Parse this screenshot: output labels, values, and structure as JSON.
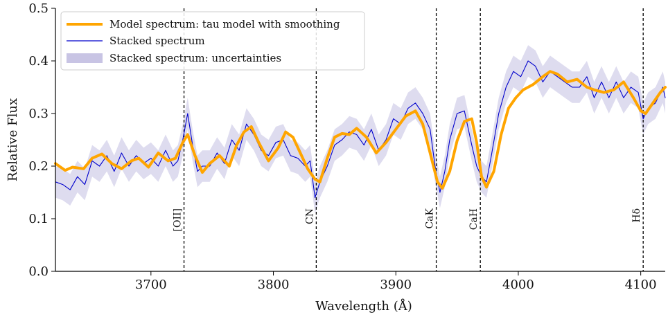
{
  "chart_data": {
    "type": "line",
    "xlabel": "Wavelength (Å)",
    "ylabel": "Relative Flux",
    "xlim": [
      3622,
      4120
    ],
    "ylim": [
      0.0,
      0.5
    ],
    "xticks": [
      3700,
      3800,
      3900,
      4000,
      4100
    ],
    "yticks": [
      0.0,
      0.1,
      0.2,
      0.3,
      0.4,
      0.5
    ],
    "legend_position": "top-left",
    "series": [
      {
        "name": "Model spectrum: tau model with smoothing",
        "color": "#FFA500",
        "x": [
          3622,
          3630,
          3636,
          3645,
          3652,
          3660,
          3668,
          3676,
          3684,
          3690,
          3698,
          3706,
          3714,
          3720,
          3726,
          3730,
          3736,
          3742,
          3748,
          3756,
          3764,
          3770,
          3776,
          3782,
          3788,
          3796,
          3804,
          3810,
          3816,
          3822,
          3828,
          3834,
          3838,
          3844,
          3850,
          3856,
          3862,
          3868,
          3876,
          3884,
          3892,
          3900,
          3908,
          3916,
          3922,
          3928,
          3934,
          3938,
          3944,
          3950,
          3956,
          3962,
          3966,
          3970,
          3974,
          3980,
          3986,
          3992,
          3998,
          4004,
          4012,
          4020,
          4026,
          4032,
          4040,
          4048,
          4056,
          4062,
          4070,
          4078,
          4086,
          4094,
          4100,
          4104,
          4110,
          4116,
          4120
        ],
        "values": [
          0.205,
          0.192,
          0.198,
          0.195,
          0.215,
          0.223,
          0.205,
          0.195,
          0.21,
          0.215,
          0.198,
          0.225,
          0.21,
          0.215,
          0.245,
          0.26,
          0.22,
          0.188,
          0.205,
          0.22,
          0.2,
          0.24,
          0.265,
          0.275,
          0.245,
          0.21,
          0.235,
          0.265,
          0.255,
          0.225,
          0.195,
          0.175,
          0.17,
          0.215,
          0.255,
          0.262,
          0.26,
          0.272,
          0.255,
          0.225,
          0.245,
          0.27,
          0.295,
          0.305,
          0.28,
          0.225,
          0.17,
          0.158,
          0.19,
          0.248,
          0.285,
          0.29,
          0.245,
          0.18,
          0.16,
          0.19,
          0.26,
          0.31,
          0.33,
          0.345,
          0.355,
          0.37,
          0.38,
          0.375,
          0.36,
          0.365,
          0.35,
          0.345,
          0.34,
          0.345,
          0.36,
          0.33,
          0.305,
          0.3,
          0.32,
          0.34,
          0.35
        ]
      },
      {
        "name": "Stacked spectrum",
        "color": "#0000CC",
        "x": [
          3622,
          3628,
          3634,
          3640,
          3646,
          3652,
          3658,
          3664,
          3670,
          3676,
          3682,
          3688,
          3694,
          3700,
          3706,
          3712,
          3718,
          3722,
          3726,
          3730,
          3734,
          3738,
          3742,
          3748,
          3754,
          3760,
          3766,
          3772,
          3778,
          3784,
          3790,
          3796,
          3802,
          3808,
          3814,
          3820,
          3826,
          3830,
          3834,
          3838,
          3844,
          3850,
          3856,
          3862,
          3868,
          3874,
          3880,
          3886,
          3892,
          3898,
          3904,
          3910,
          3916,
          3922,
          3928,
          3932,
          3936,
          3940,
          3944,
          3950,
          3956,
          3962,
          3966,
          3970,
          3974,
          3978,
          3984,
          3990,
          3996,
          4002,
          4008,
          4014,
          4020,
          4026,
          4032,
          4038,
          4044,
          4050,
          4056,
          4062,
          4068,
          4074,
          4080,
          4086,
          4092,
          4098,
          4102,
          4106,
          4112,
          4118,
          4120
        ],
        "values": [
          0.17,
          0.165,
          0.155,
          0.18,
          0.165,
          0.21,
          0.2,
          0.22,
          0.19,
          0.225,
          0.2,
          0.22,
          0.205,
          0.215,
          0.2,
          0.23,
          0.2,
          0.21,
          0.25,
          0.3,
          0.24,
          0.19,
          0.2,
          0.2,
          0.225,
          0.205,
          0.25,
          0.23,
          0.28,
          0.26,
          0.23,
          0.22,
          0.245,
          0.25,
          0.22,
          0.215,
          0.2,
          0.21,
          0.14,
          0.17,
          0.2,
          0.24,
          0.25,
          0.265,
          0.26,
          0.24,
          0.27,
          0.23,
          0.25,
          0.29,
          0.28,
          0.31,
          0.32,
          0.3,
          0.27,
          0.2,
          0.15,
          0.19,
          0.25,
          0.3,
          0.305,
          0.24,
          0.2,
          0.18,
          0.17,
          0.22,
          0.3,
          0.35,
          0.38,
          0.37,
          0.4,
          0.39,
          0.36,
          0.38,
          0.37,
          0.36,
          0.35,
          0.35,
          0.37,
          0.33,
          0.36,
          0.33,
          0.36,
          0.33,
          0.35,
          0.34,
          0.29,
          0.31,
          0.32,
          0.35,
          0.33
        ]
      },
      {
        "name": "Stacked spectrum: uncertainties",
        "color": "#C8C4E4"
      }
    ],
    "annotations": [
      {
        "label": "[OII]",
        "x": 3727
      },
      {
        "label": "CN",
        "x": 3835
      },
      {
        "label": "CaK",
        "x": 3933
      },
      {
        "label": "CaH",
        "x": 3969
      },
      {
        "label": "Hδ",
        "x": 4102
      }
    ]
  }
}
